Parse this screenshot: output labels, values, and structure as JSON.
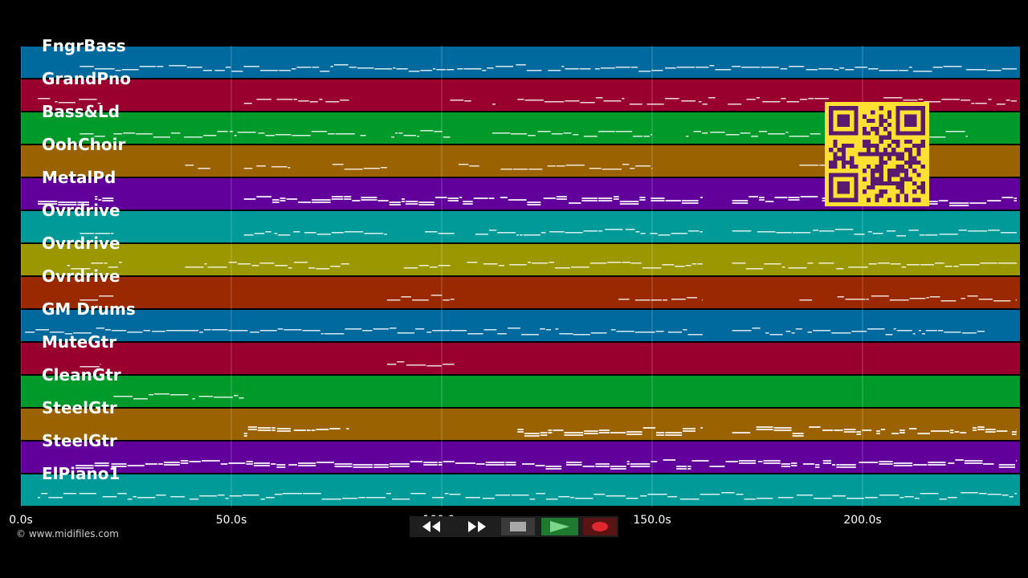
{
  "tracks": [
    {
      "name": "FngrBass",
      "color": "#00699e"
    },
    {
      "name": "GrandPno",
      "color": "#99002e"
    },
    {
      "name": "Bass&Ld",
      "color": "#009a2b"
    },
    {
      "name": "OohChoir",
      "color": "#9a6200"
    },
    {
      "name": "MetalPd",
      "color": "#61009a"
    },
    {
      "name": "Ovrdrive",
      "color": "#009a98"
    },
    {
      "name": "Ovrdrive",
      "color": "#9a9700"
    },
    {
      "name": "Ovrdrive",
      "color": "#9a2800"
    },
    {
      "name": "GM Drums",
      "color": "#00699e"
    },
    {
      "name": "MuteGtr",
      "color": "#99002e"
    },
    {
      "name": "CleanGtr",
      "color": "#009a2b"
    },
    {
      "name": "SteelGtr",
      "color": "#9a6200"
    },
    {
      "name": "SteelGtr",
      "color": "#61009a"
    },
    {
      "name": "ElPiano1",
      "color": "#009a98"
    }
  ],
  "timeline": {
    "ticks": [
      {
        "label": "0.0s",
        "seconds": 0
      },
      {
        "label": "50.0s",
        "seconds": 50
      },
      {
        "label": "100.0s",
        "seconds": 100
      },
      {
        "label": "150.0s",
        "seconds": 150
      },
      {
        "label": "200.0s",
        "seconds": 200
      }
    ],
    "duration_seconds": 237.5
  },
  "copyright": "© www.midifiles.com",
  "qr": {
    "color": "#ffe033",
    "dark": "#5a1a6e"
  },
  "transport": {
    "rewind_icon": "rewind-icon",
    "fast_forward_icon": "fast-forward-icon",
    "stop_icon": "stop-icon",
    "play_icon": "play-icon",
    "record_icon": "record-icon"
  }
}
